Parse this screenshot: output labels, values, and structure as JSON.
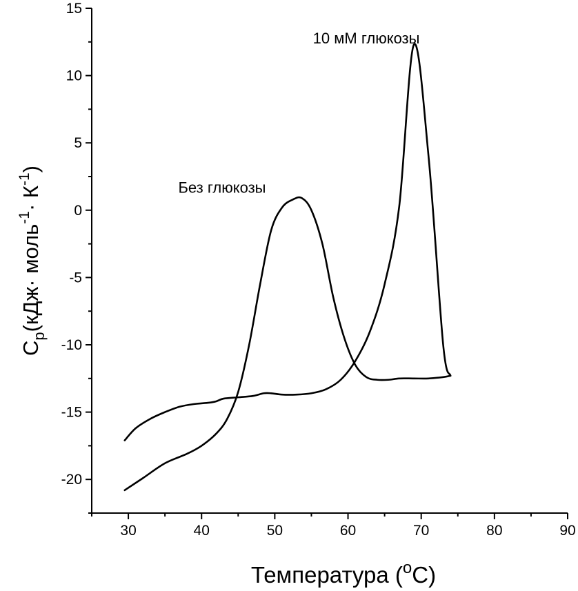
{
  "chart_data": {
    "type": "line",
    "xlabel_main": "Температура (",
    "xlabel_sup": "o",
    "xlabel_end": "C)",
    "ylabel_c": "C",
    "ylabel_p": "p",
    "ylabel_part1": "(кДж· моль",
    "ylabel_sup1": "-1",
    "ylabel_part2": "· К",
    "ylabel_sup2": "-1",
    "ylabel_end": ")",
    "xlim": [
      25,
      90
    ],
    "ylim": [
      -22.5,
      15
    ],
    "x_ticks": [
      30,
      40,
      50,
      60,
      70,
      80,
      90
    ],
    "y_ticks": [
      -20,
      -15,
      -10,
      -5,
      0,
      5,
      10,
      15
    ],
    "x_tick_labels": [
      "30",
      "40",
      "50",
      "60",
      "70",
      "80",
      "90"
    ],
    "y_tick_labels": [
      "-20",
      "-15",
      "-10",
      "-5",
      "0",
      "5",
      "10",
      "15"
    ],
    "series": [
      {
        "color": "#000000",
        "x": [
          29.5,
          31,
          33,
          35,
          37,
          39,
          41,
          42,
          43,
          45,
          47,
          48.5,
          49.5,
          51,
          53,
          55,
          57,
          59,
          61,
          63,
          65,
          67,
          69,
          71,
          73,
          74
        ],
        "y": [
          -17.1,
          -16.2,
          -15.5,
          -15.0,
          -14.6,
          -14.4,
          -14.3,
          -14.2,
          -14.0,
          -13.9,
          -13.8,
          -13.6,
          -13.6,
          -13.7,
          -13.7,
          -13.6,
          -13.3,
          -12.6,
          -11.2,
          -9.0,
          -5.5,
          0.3,
          12.3,
          4.0,
          -10.0,
          -12.3
        ]
      },
      {
        "color": "#000000",
        "x": [
          29.5,
          32,
          35,
          38,
          40,
          42,
          43.5,
          45,
          46.5,
          48,
          49.5,
          51,
          52.5,
          53.7,
          55,
          56.5,
          58,
          59.5,
          61,
          62.5,
          64,
          65.5,
          67,
          69,
          71,
          73,
          74
        ],
        "y": [
          -20.8,
          -19.9,
          -18.8,
          -18.1,
          -17.5,
          -16.6,
          -15.5,
          -13.5,
          -10.0,
          -5.5,
          -1.5,
          0.2,
          0.8,
          0.9,
          0.0,
          -2.5,
          -6.5,
          -9.5,
          -11.5,
          -12.4,
          -12.6,
          -12.6,
          -12.5,
          -12.5,
          -12.5,
          -12.4,
          -12.3
        ]
      }
    ],
    "annotations": [
      {
        "text": "10 мМ глюкозы",
        "x": 62.5,
        "y": 12.4
      },
      {
        "text": "Без глюкозы",
        "x": 42.8,
        "y": 1.3
      }
    ]
  }
}
